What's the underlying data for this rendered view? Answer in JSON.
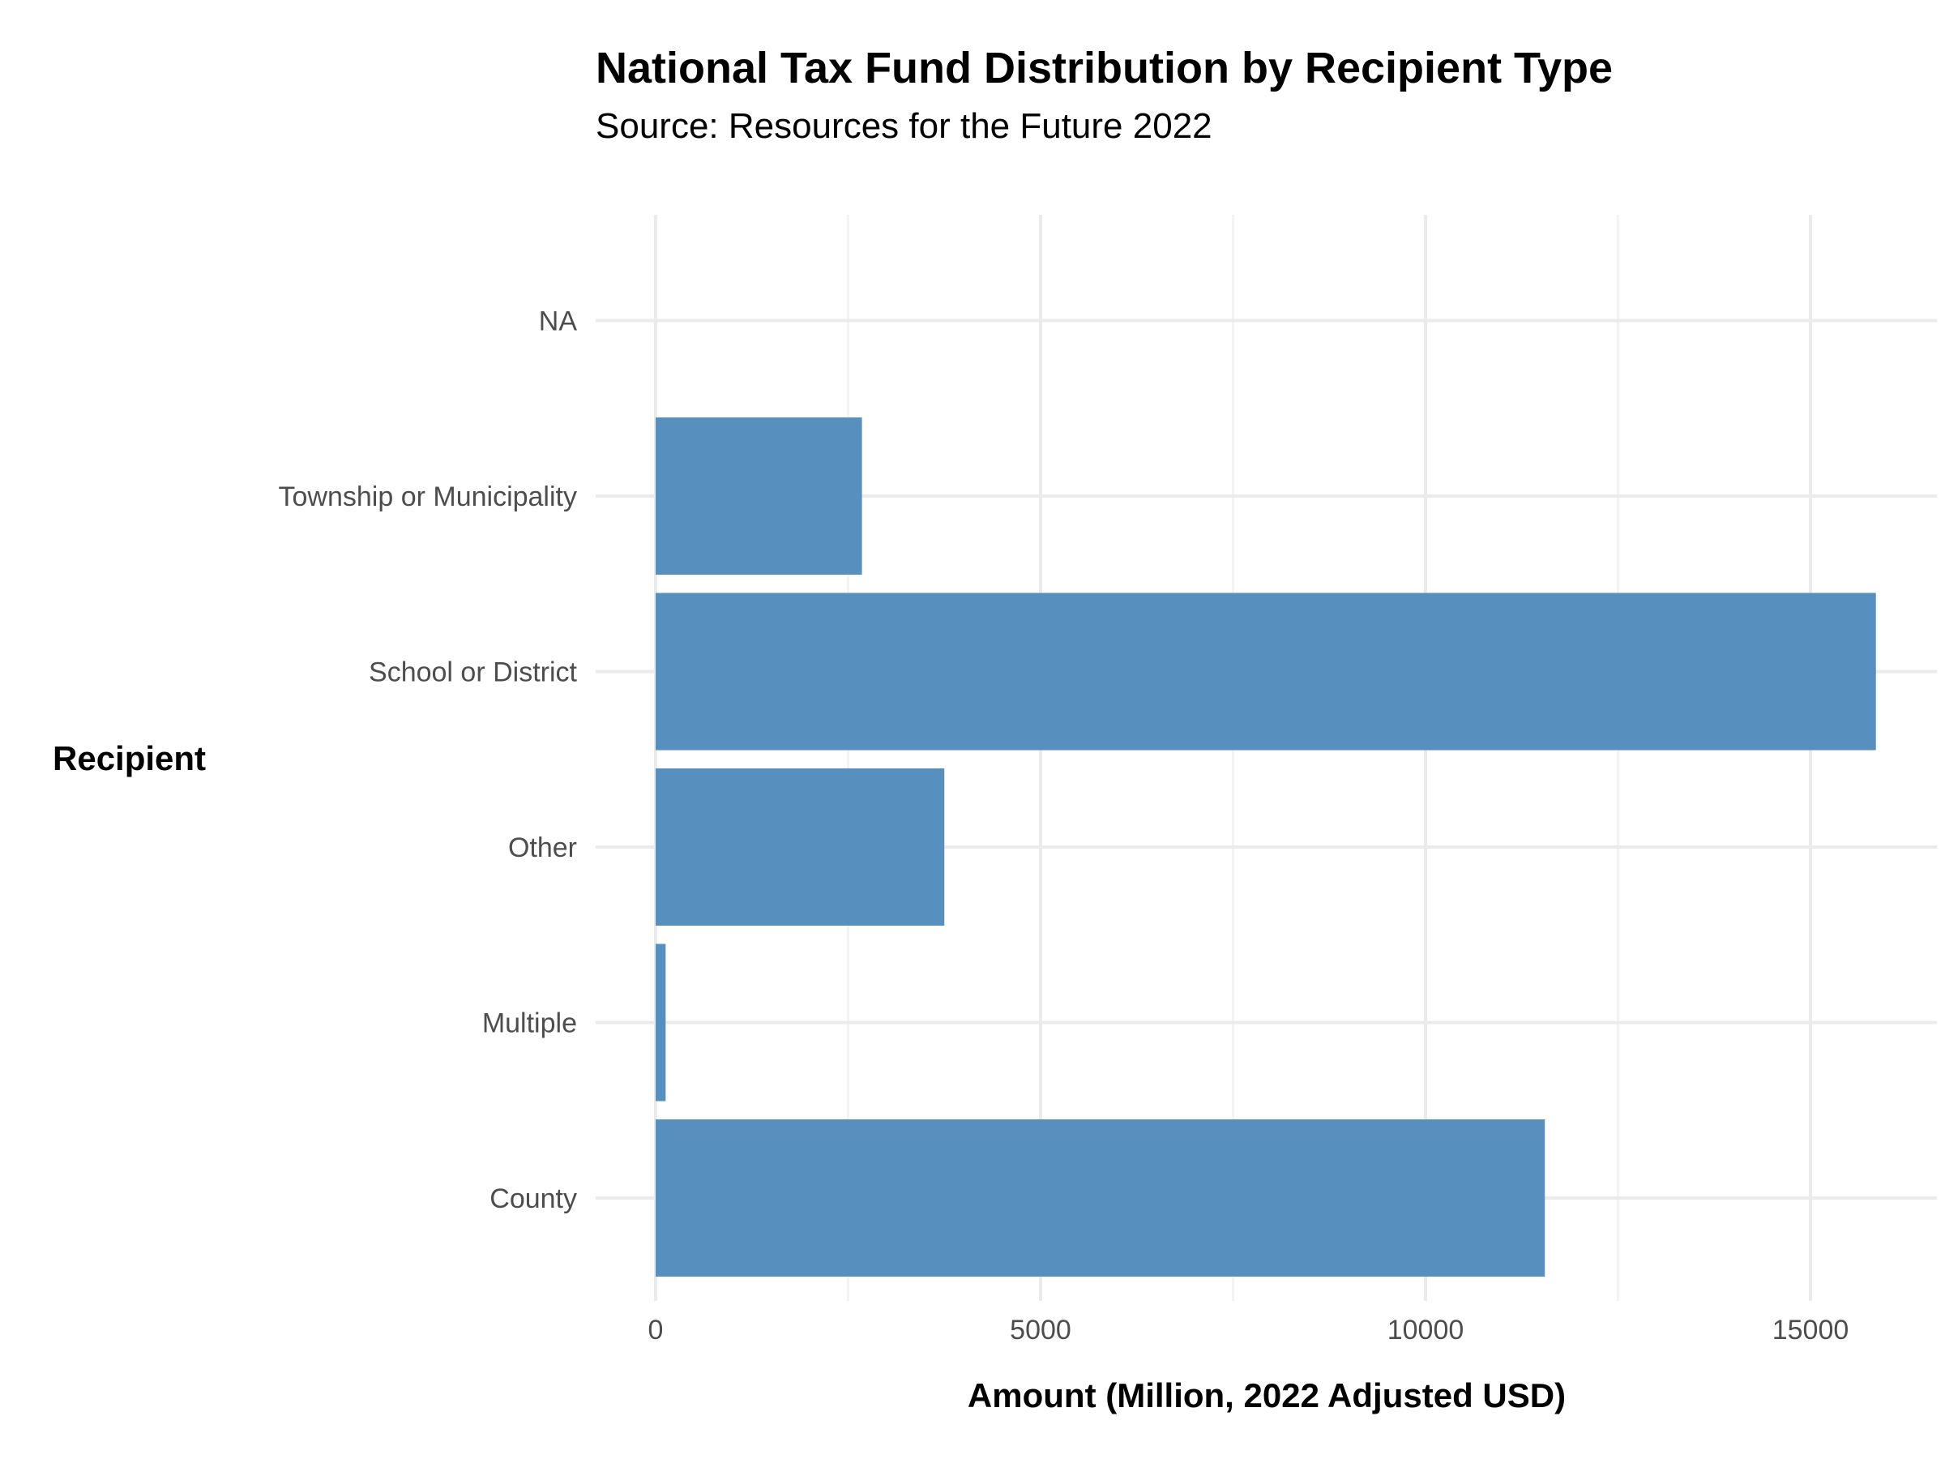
{
  "chart_data": {
    "type": "bar",
    "orientation": "horizontal",
    "title": "National Tax Fund Distribution by Recipient Type",
    "subtitle": "Source: Resources for the Future 2022",
    "xlabel": "Amount (Million, 2022 Adjusted USD)",
    "ylabel": "Recipient",
    "categories": [
      "County",
      "Multiple",
      "Other",
      "School or District",
      "Township or Municipality",
      "NA"
    ],
    "values": [
      11550,
      130,
      3750,
      15850,
      2680,
      0
    ],
    "xlim": [
      0,
      16600
    ],
    "x_ticks": [
      0,
      5000,
      10000,
      15000
    ],
    "x_tick_labels": [
      "0",
      "5000",
      "10000",
      "15000"
    ],
    "grid": true,
    "legend": "none",
    "bar_color": "#5790BF"
  }
}
